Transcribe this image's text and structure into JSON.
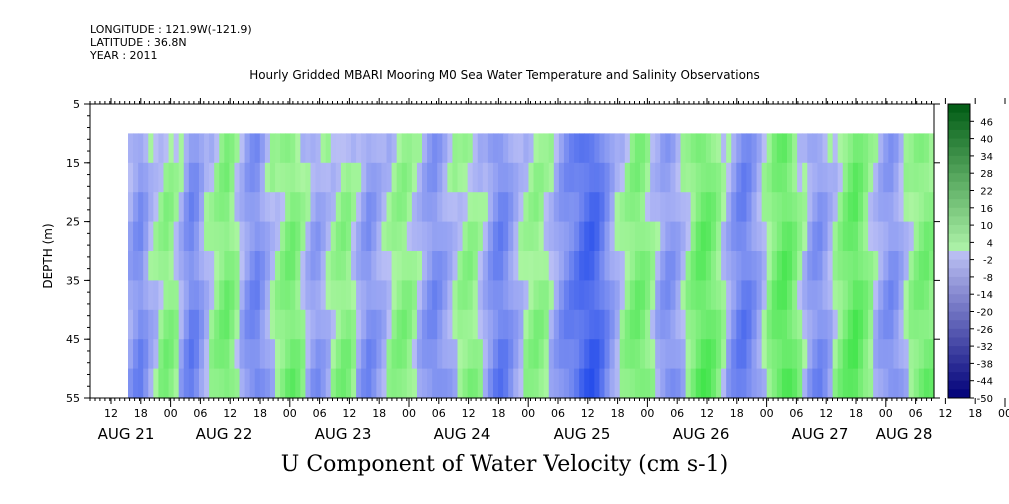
{
  "header": {
    "longitude": "LONGITUDE : 121.9W(-121.9)",
    "latitude": "LATITUDE : 36.8N",
    "year": "YEAR : 2011",
    "title": "Hourly Gridded MBARI Mooring M0 Sea Water Temperature and Salinity Observations"
  },
  "chart_data": {
    "type": "heatmap",
    "title": "Hourly Gridded MBARI Mooring M0 Sea Water Temperature and Salinity Observations",
    "xlabel": "U Component of Water Velocity (cm s-1)",
    "ylabel": "DEPTH (m)",
    "y_ticks": [
      5,
      15,
      25,
      35,
      45,
      55
    ],
    "ylim": [
      5,
      55
    ],
    "y_inverted": true,
    "data_depth_range": [
      10,
      55
    ],
    "hour_ticks": [
      "12",
      "18",
      "00",
      "06",
      "12",
      "18",
      "00",
      "06",
      "12",
      "18",
      "00",
      "06",
      "12",
      "18",
      "00",
      "06",
      "12",
      "18",
      "00",
      "06",
      "12",
      "18",
      "00",
      "06",
      "12",
      "18",
      "00",
      "06",
      "12",
      "18",
      "00",
      "06"
    ],
    "day_labels": [
      "AUG 21",
      "AUG 22",
      "AUG 23",
      "AUG 24",
      "AUG 25",
      "AUG 26",
      "AUG 27",
      "AUG 28"
    ],
    "colorbar_labels": [
      "46",
      "40",
      "34",
      "28",
      "22",
      "16",
      "10",
      "4",
      "-2",
      "-8",
      "-14",
      "-20",
      "-26",
      "-32",
      "-38",
      "-44",
      "-50"
    ],
    "colorbar_range": [
      -50,
      52
    ],
    "colorbar_step": 3,
    "column_values": [
      -6,
      -10,
      -12,
      -8,
      -3,
      -1,
      3,
      6,
      5,
      2,
      -4,
      -10,
      -14,
      -12,
      -7,
      -2,
      1,
      4,
      7,
      9,
      6,
      2,
      -4,
      -9,
      -12,
      -13,
      -9,
      -5,
      -1,
      2,
      5,
      8,
      9,
      6,
      2,
      -3,
      -7,
      -8,
      -5,
      -2,
      1,
      4,
      6,
      5,
      1,
      -4,
      -8,
      -11,
      -9,
      -6,
      -3,
      0,
      3,
      5,
      6,
      4,
      1,
      -3,
      -7,
      -10,
      -12,
      -10,
      -7,
      -4,
      -1,
      2,
      4,
      5,
      3,
      0,
      -4,
      -9,
      -13,
      -15,
      -13,
      -9,
      -5,
      -2,
      1,
      3,
      5,
      4,
      2,
      -2,
      -6,
      -10,
      -13,
      -15,
      -17,
      -20,
      -22,
      -23,
      -21,
      -17,
      -12,
      -7,
      -3,
      1,
      4,
      7,
      9,
      8,
      5,
      1,
      -4,
      -8,
      -10,
      -9,
      -6,
      -2,
      3,
      7,
      11,
      13,
      12,
      9,
      5,
      0,
      -5,
      -10,
      -14,
      -16,
      -14,
      -10,
      -6,
      -1,
      4,
      9,
      12,
      14,
      12,
      8,
      3,
      -2,
      -7,
      -10,
      -11,
      -8,
      -4,
      1,
      5,
      9,
      12,
      14,
      11,
      7,
      3,
      -2,
      -6,
      -9,
      -11,
      -9,
      -5,
      -1,
      3,
      6,
      8,
      9,
      7
    ]
  }
}
